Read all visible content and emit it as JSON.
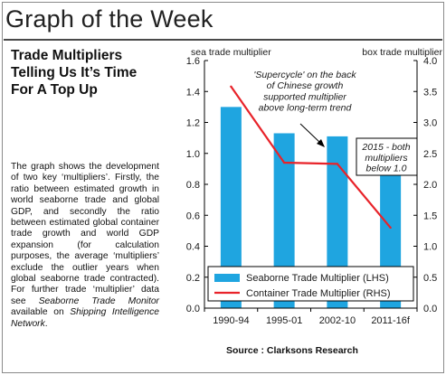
{
  "page": {
    "section_title": "Graph of the Week",
    "headline_lines": [
      "Trade Multipliers",
      "Telling Us It’s Time",
      "For A Top Up"
    ],
    "body_before_italic_1": "The graph shows the development of two key ‘multipliers’. Firstly, the ratio between estimated growth in world seaborne trade and global GDP, and secondly the ratio between estimated global container trade growth and world GDP expansion (for calculation purposes, the average ‘multipliers’ exclude the outlier years when global seaborne trade contracted). For further trade ‘multiplier’ data see ",
    "italic_1": "Seaborne Trade Monitor",
    "body_between": " available on ",
    "italic_2": "Shipping Intelligence Network",
    "body_end": ".",
    "source": "Source : Clarksons Research"
  },
  "colors": {
    "bar": "#1fa5e0",
    "line": "#e8232a",
    "text": "#1a1a1a"
  },
  "chart_data": {
    "type": "bar",
    "categories": [
      "1990-94",
      "1995-01",
      "2002-10",
      "2011-16f"
    ],
    "series": [
      {
        "name": "Seaborne Trade Multiplier (LHS)",
        "type": "bar",
        "axis": "left",
        "values": [
          1.3,
          1.13,
          1.11,
          0.95
        ]
      },
      {
        "name": "Container Trade Multiplier (RHS)",
        "type": "line",
        "axis": "right",
        "values": [
          3.58,
          2.35,
          2.33,
          1.3
        ]
      }
    ],
    "left_axis": {
      "label": "sea trade multiplier",
      "ylim": [
        0,
        1.6
      ],
      "ticks": [
        "0.0",
        "0.2",
        "0.4",
        "0.6",
        "0.8",
        "1.0",
        "1.2",
        "1.4",
        "1.6"
      ]
    },
    "right_axis": {
      "label": "box trade multiplier",
      "ylim": [
        0,
        4.0
      ],
      "ticks": [
        "0.0",
        "0.5",
        "1.0",
        "1.5",
        "2.0",
        "2.5",
        "3.0",
        "3.5",
        "4.0"
      ]
    },
    "annotations": [
      {
        "text_lines": [
          "'Supercycle' on the back",
          "of Chinese growth",
          "supported multiplier",
          "above long-term trend"
        ],
        "style": "italic"
      },
      {
        "text_lines": [
          "2015 - both",
          "multipliers",
          "below 1.0"
        ],
        "style": "boxed-italic"
      }
    ],
    "legend_position": "bottom",
    "grid": false
  }
}
